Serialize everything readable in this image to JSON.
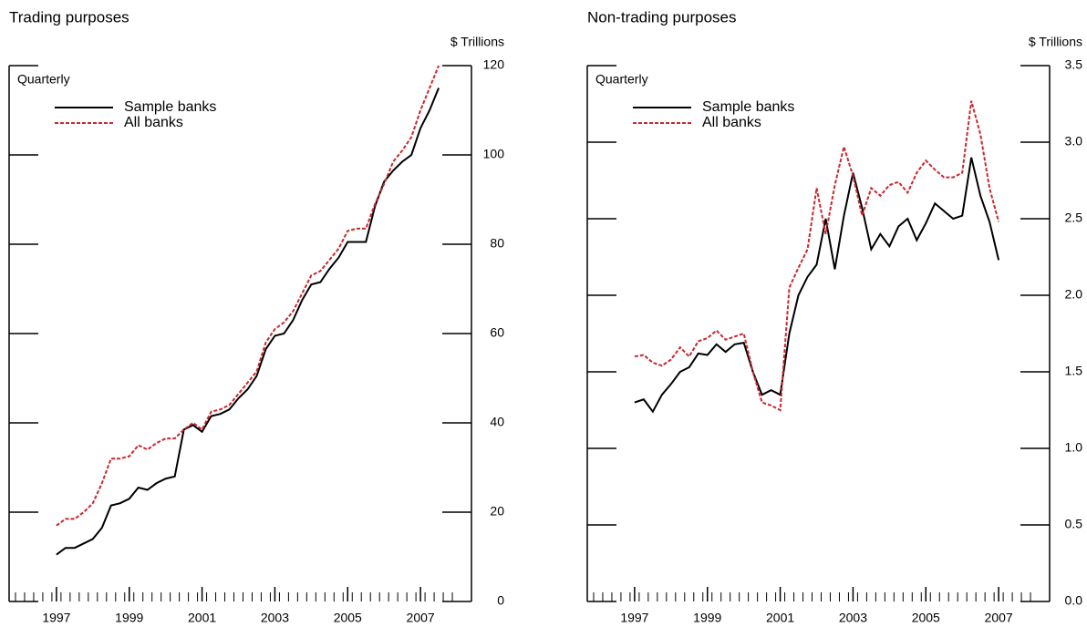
{
  "chart_data": [
    {
      "type": "line",
      "title": "Trading purposes",
      "unit": "$ Trillions",
      "annotation": "Quarterly",
      "x": [
        1997,
        1997.25,
        1997.5,
        1997.75,
        1998,
        1998.25,
        1998.5,
        1998.75,
        1999,
        1999.25,
        1999.5,
        1999.75,
        2000,
        2000.25,
        2000.5,
        2000.75,
        2001,
        2001.25,
        2001.5,
        2001.75,
        2002,
        2002.25,
        2002.5,
        2002.75,
        2003,
        2003.25,
        2003.5,
        2003.75,
        2004,
        2004.25,
        2004.5,
        2004.75,
        2005,
        2005.25,
        2005.5,
        2005.75,
        2006,
        2006.25,
        2006.5,
        2006.75,
        2007,
        2007.25,
        2007.5
      ],
      "series": [
        {
          "name": "Sample banks",
          "color": "#000000",
          "dashed": false,
          "values": [
            10.5,
            12,
            12,
            13,
            14,
            16.5,
            21.5,
            22,
            23,
            25.5,
            25,
            26.5,
            27.5,
            28,
            38.5,
            39.5,
            38,
            41.5,
            42,
            43,
            45.5,
            47.5,
            50.5,
            56.5,
            59.5,
            60,
            63,
            67.5,
            71,
            71.5,
            74.5,
            77,
            80.5,
            80.5,
            80.5,
            88.5,
            94,
            96.5,
            98.5,
            100,
            106,
            110,
            115
          ]
        },
        {
          "name": "All banks",
          "color": "#c8282e",
          "dashed": true,
          "values": [
            17,
            18.5,
            18.5,
            20,
            22,
            26.5,
            32,
            32,
            32.5,
            35,
            34,
            35.5,
            36.5,
            36.5,
            38.5,
            40,
            38.5,
            42.5,
            43,
            44,
            46.5,
            49,
            51.5,
            58,
            61,
            62.5,
            65,
            69,
            73,
            74,
            76.5,
            79,
            83,
            83.5,
            83.5,
            89,
            93.5,
            98.5,
            101,
            104,
            110,
            115,
            120
          ]
        }
      ],
      "xlim": [
        1995.7,
        2008.4
      ],
      "xticks": [
        1997,
        1999,
        2001,
        2003,
        2005,
        2007
      ],
      "ylim": [
        0,
        120
      ],
      "yticks": [
        0,
        20,
        40,
        60,
        80,
        100,
        120
      ]
    },
    {
      "type": "line",
      "title": "Non-trading purposes",
      "unit": "$ Trillions",
      "annotation": "Quarterly",
      "x": [
        1997,
        1997.25,
        1997.5,
        1997.75,
        1998,
        1998.25,
        1998.5,
        1998.75,
        1999,
        1999.25,
        1999.5,
        1999.75,
        2000,
        2000.25,
        2000.5,
        2000.75,
        2001,
        2001.25,
        2001.5,
        2001.75,
        2002,
        2002.25,
        2002.5,
        2002.75,
        2003,
        2003.25,
        2003.5,
        2003.75,
        2004,
        2004.25,
        2004.5,
        2004.75,
        2005,
        2005.25,
        2005.5,
        2005.75,
        2006,
        2006.25,
        2006.5,
        2006.75,
        2007
      ],
      "series": [
        {
          "name": "Sample banks",
          "color": "#000000",
          "dashed": false,
          "values": [
            1.3,
            1.32,
            1.24,
            1.35,
            1.42,
            1.5,
            1.53,
            1.62,
            1.61,
            1.68,
            1.63,
            1.68,
            1.69,
            1.5,
            1.35,
            1.38,
            1.35,
            1.75,
            2.0,
            2.12,
            2.2,
            2.5,
            2.17,
            2.52,
            2.8,
            2.57,
            2.3,
            2.4,
            2.32,
            2.45,
            2.5,
            2.36,
            2.47,
            2.6,
            2.55,
            2.5,
            2.52,
            2.9,
            2.65,
            2.48,
            2.23
          ]
        },
        {
          "name": "All banks",
          "color": "#c8282e",
          "dashed": true,
          "values": [
            1.6,
            1.61,
            1.56,
            1.54,
            1.58,
            1.66,
            1.6,
            1.7,
            1.72,
            1.77,
            1.71,
            1.73,
            1.75,
            1.5,
            1.3,
            1.28,
            1.25,
            2.05,
            2.18,
            2.3,
            2.7,
            2.4,
            2.72,
            2.97,
            2.78,
            2.52,
            2.7,
            2.65,
            2.72,
            2.74,
            2.67,
            2.8,
            2.88,
            2.82,
            2.77,
            2.77,
            2.8,
            3.27,
            3.05,
            2.7,
            2.48
          ]
        }
      ],
      "xlim": [
        1995.7,
        2008.4
      ],
      "xticks": [
        1997,
        1999,
        2001,
        2003,
        2005,
        2007
      ],
      "ylim": [
        0,
        3.5
      ],
      "yticks": [
        {
          "value": 0,
          "label": "0.0"
        },
        0.5,
        {
          "value": 1,
          "label": "1.0"
        },
        1.5,
        {
          "value": 2,
          "label": "2.0"
        },
        2.5,
        {
          "value": 3,
          "label": "3.0"
        },
        3.5
      ]
    }
  ]
}
